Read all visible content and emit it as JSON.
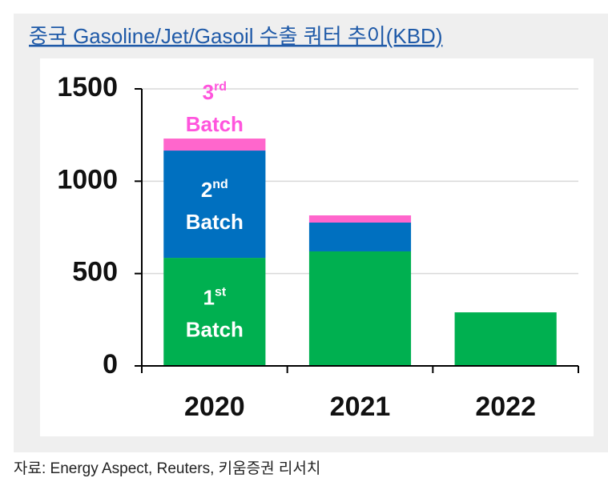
{
  "chart_data": {
    "type": "stacked_bar",
    "title": "중국 Gasoline/Jet/Gasoil 수출 쿼터 추이(KBD)",
    "source": "자료: Energy Aspect, Reuters, 키움증권 리서치",
    "categories": [
      "2020",
      "2021",
      "2022"
    ],
    "series": [
      {
        "name": "1st Batch",
        "color": "#00b050",
        "values": [
          585,
          620,
          290
        ]
      },
      {
        "name": "2nd Batch",
        "color": "#0070c0",
        "values": [
          581,
          156,
          0
        ]
      },
      {
        "name": "3rd Batch",
        "color": "#ff66cc",
        "values": [
          65,
          39,
          0
        ]
      }
    ],
    "ylim": [
      0,
      1500
    ],
    "yticks": [
      0,
      500,
      1000,
      1500
    ],
    "grid": true
  }
}
